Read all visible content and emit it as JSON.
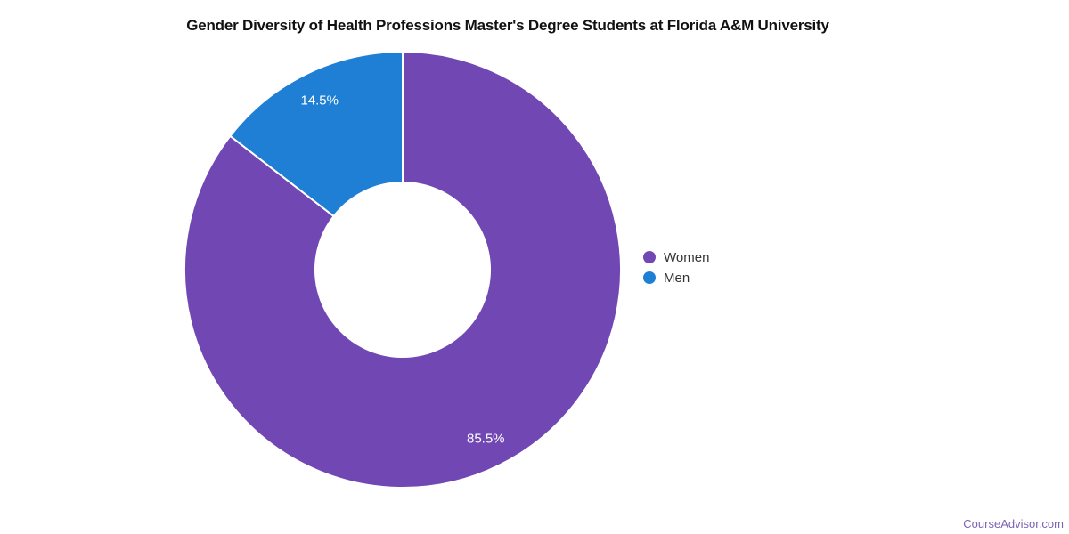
{
  "page": {
    "background": "#ffffff",
    "watermark": {
      "text": "CourseAdvisor.com",
      "color": "#7D62B8"
    }
  },
  "chart_data": {
    "type": "pie",
    "donut": true,
    "title": "Gender Diversity of Health Professions Master's Degree Students at Florida A&M University",
    "title_color": "#111111",
    "start_angle_deg": 0,
    "direction": "clockwise",
    "inner_radius_pct": 40,
    "unit": "%",
    "categories": [
      "Women",
      "Men"
    ],
    "values": [
      85.5,
      14.5
    ],
    "slices": [
      {
        "name": "Women",
        "value": 85.5,
        "label": "85.5%",
        "color": "#7147B4"
      },
      {
        "name": "Men",
        "value": 14.5,
        "label": "14.5%",
        "color": "#1E7FD5"
      }
    ],
    "slice_border_color": "#ffffff",
    "label_color": "#ffffff",
    "legend": {
      "position": "right",
      "text_color": "#333333"
    }
  }
}
